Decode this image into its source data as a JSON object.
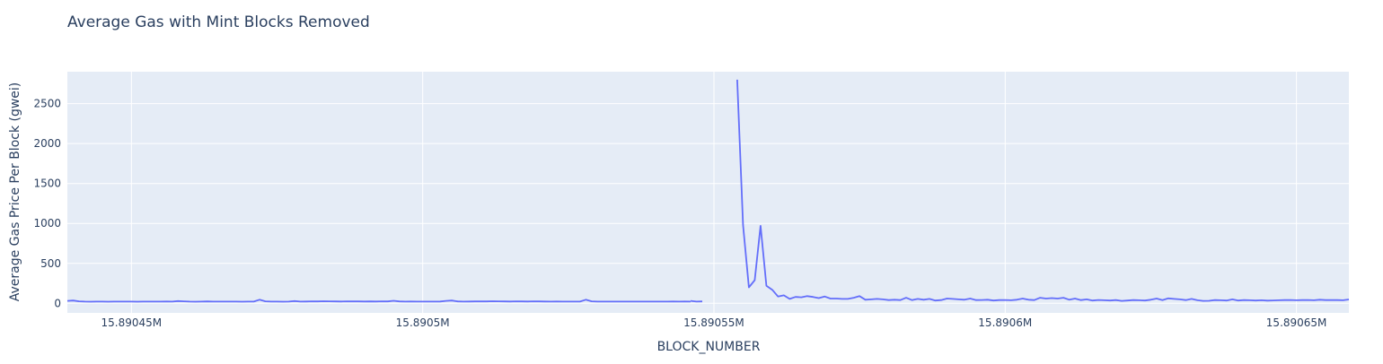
{
  "chart_data": {
    "type": "line",
    "title": "Average Gas with Mint Blocks Removed",
    "xlabel": "BLOCK_NUMBER",
    "ylabel": "Average Gas Price Per Block (gwei)",
    "xlim": [
      15890434,
      15890654
    ],
    "ylim": [
      -120,
      2900
    ],
    "xticks": [
      15890445,
      15890495,
      15890545,
      15890595,
      15890645
    ],
    "xtick_labels": [
      "15.89045M",
      "15.8905M",
      "15.89055M",
      "15.8906M",
      "15.89065M"
    ],
    "yticks": [
      0,
      500,
      1000,
      1500,
      2000,
      2500
    ],
    "ytick_labels": [
      "0",
      "500",
      "1000",
      "1500",
      "2000",
      "2500"
    ],
    "grid": true,
    "colors": {
      "line": "#636efa",
      "plot_bg": "#e5ecf6",
      "grid": "#ffffff",
      "text": "#2a3f5f"
    },
    "series": [
      {
        "segments": [
          {
            "x": [
              15890434,
              15890435,
              15890436,
              15890437,
              15890438,
              15890439,
              15890440,
              15890441,
              15890442,
              15890443,
              15890444,
              15890445,
              15890446,
              15890447,
              15890448,
              15890449,
              15890450,
              15890451,
              15890452,
              15890453,
              15890454,
              15890455,
              15890456,
              15890457,
              15890458,
              15890459,
              15890460,
              15890461,
              15890462,
              15890463,
              15890464,
              15890465,
              15890466,
              15890467,
              15890468,
              15890469,
              15890470,
              15890471,
              15890472,
              15890473,
              15890474,
              15890475,
              15890476,
              15890477,
              15890478,
              15890479,
              15890480,
              15890481,
              15890482,
              15890483,
              15890484,
              15890485,
              15890486,
              15890487,
              15890488,
              15890489,
              15890490,
              15890491,
              15890492,
              15890493,
              15890494,
              15890495,
              15890496,
              15890497,
              15890498,
              15890499,
              15890500,
              15890501,
              15890502,
              15890503,
              15890504,
              15890505,
              15890506,
              15890507,
              15890508,
              15890509,
              15890510,
              15890511,
              15890512,
              15890513,
              15890514,
              15890515,
              15890516,
              15890517,
              15890518,
              15890519,
              15890520,
              15890521,
              15890522,
              15890523,
              15890524,
              15890525,
              15890526,
              15890527,
              15890528,
              15890529,
              15890530,
              15890531,
              15890532,
              15890533,
              15890534,
              15890535,
              15890536,
              15890537,
              15890538,
              15890539,
              15890540,
              15890541
            ],
            "y": [
              30,
              35,
              25,
              22,
              20,
              22,
              21,
              20,
              22,
              21,
              22,
              21,
              20,
              22,
              21,
              22,
              21,
              23,
              22,
              28,
              25,
              22,
              20,
              22,
              24,
              21,
              22,
              21,
              22,
              21,
              20,
              21,
              22,
              45,
              25,
              22,
              21,
              20,
              22,
              28,
              22,
              23,
              25,
              24,
              26,
              25,
              24,
              23,
              24,
              25,
              24,
              23,
              24,
              23,
              25,
              24,
              32,
              24,
              22,
              23,
              21,
              22,
              21,
              22,
              23,
              30,
              35,
              24,
              22,
              23,
              24,
              25,
              24,
              26,
              25,
              24,
              23,
              25,
              24,
              23,
              25,
              24,
              23,
              22,
              23,
              22,
              21,
              22,
              21,
              45,
              25,
              22,
              21,
              22,
              21,
              22,
              21,
              22,
              21,
              22,
              21,
              22,
              21,
              22,
              23,
              22,
              23,
              22
            ]
          },
          {
            "x": [
              15890541,
              15890542,
              15890543
            ],
            "y": [
              30,
              22,
              24
            ]
          },
          {
            "x": [
              15890549,
              15890550,
              15890551,
              15890552,
              15890553,
              15890554,
              15890555,
              15890556,
              15890557,
              15890558,
              15890559,
              15890560,
              15890561,
              15890562,
              15890563,
              15890564,
              15890565,
              15890566,
              15890567,
              15890568,
              15890569,
              15890570,
              15890571,
              15890572,
              15890573,
              15890574,
              15890575,
              15890576,
              15890577,
              15890578,
              15890579,
              15890580,
              15890581,
              15890582,
              15890583,
              15890584,
              15890585,
              15890586,
              15890587,
              15890588,
              15890589,
              15890590,
              15890591,
              15890592,
              15890593,
              15890594,
              15890595,
              15890596,
              15890597,
              15890598,
              15890599,
              15890600,
              15890601,
              15890602,
              15890603,
              15890604,
              15890605,
              15890606,
              15890607,
              15890608,
              15890609,
              15890610,
              15890611,
              15890612,
              15890613,
              15890614,
              15890615,
              15890616,
              15890617,
              15890618,
              15890619,
              15890620,
              15890621,
              15890622,
              15890623,
              15890624,
              15890625,
              15890626,
              15890627,
              15890628,
              15890629,
              15890630,
              15890631,
              15890632,
              15890633,
              15890634,
              15890635,
              15890636,
              15890637,
              15890638,
              15890639,
              15890640,
              15890641,
              15890642,
              15890643,
              15890644,
              15890645,
              15890646,
              15890647,
              15890648,
              15890649,
              15890650,
              15890651,
              15890652,
              15890653,
              15890654
            ],
            "y": [
              2800,
              980,
              200,
              290,
              970,
              220,
              170,
              85,
              100,
              55,
              80,
              75,
              90,
              80,
              65,
              85,
              60,
              60,
              55,
              55,
              70,
              90,
              45,
              50,
              55,
              50,
              40,
              45,
              40,
              70,
              40,
              55,
              45,
              55,
              35,
              40,
              60,
              55,
              50,
              45,
              60,
              40,
              42,
              45,
              35,
              40,
              42,
              38,
              45,
              60,
              45,
              40,
              70,
              60,
              65,
              60,
              70,
              45,
              60,
              40,
              50,
              35,
              42,
              38,
              35,
              40,
              30,
              35,
              40,
              38,
              35,
              45,
              60,
              40,
              62,
              55,
              50,
              40,
              55,
              38,
              30,
              32,
              40,
              38,
              35,
              50,
              35,
              40,
              38,
              35,
              38,
              34,
              36,
              38,
              40,
              42,
              38,
              40,
              42,
              38,
              45,
              40,
              42,
              40,
              38,
              48
            ]
          }
        ]
      }
    ]
  }
}
